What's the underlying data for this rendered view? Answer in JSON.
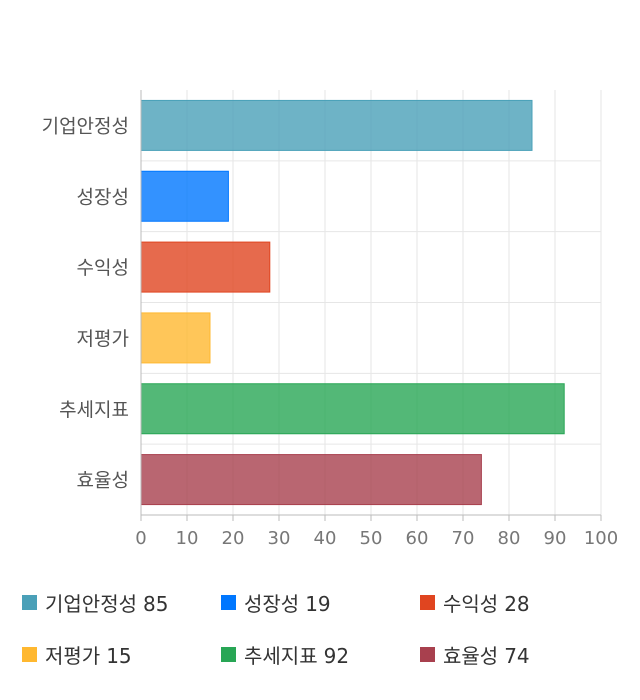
{
  "chart_data": {
    "type": "bar",
    "orientation": "horizontal",
    "categories": [
      "기업안정성",
      "성장성",
      "수익성",
      "저평가",
      "추세지표",
      "효율성"
    ],
    "values": [
      85,
      19,
      28,
      15,
      92,
      74
    ],
    "colors": [
      "#4aa0b8",
      "#0077ff",
      "#e04520",
      "#ffb830",
      "#28a655",
      "#a8404e"
    ],
    "xlim": [
      0,
      100
    ],
    "xticks": [
      0,
      10,
      20,
      30,
      40,
      50,
      60,
      70,
      80,
      90,
      100
    ],
    "grid": true,
    "legend_position": "bottom"
  },
  "legend": [
    {
      "label": "기업안정성",
      "value": "85",
      "color": "#4aa0b8"
    },
    {
      "label": "성장성",
      "value": "19",
      "color": "#0077ff"
    },
    {
      "label": "수익성",
      "value": "28",
      "color": "#e04520"
    },
    {
      "label": "저평가",
      "value": "15",
      "color": "#ffb830"
    },
    {
      "label": "추세지표",
      "value": "92",
      "color": "#28a655"
    },
    {
      "label": "효율성",
      "value": "74",
      "color": "#a8404e"
    }
  ]
}
